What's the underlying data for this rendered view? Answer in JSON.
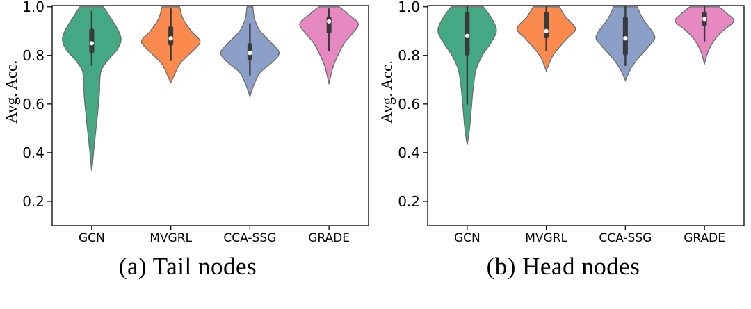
{
  "figure": {
    "captions": [
      "(a) Tail nodes",
      "(b) Head nodes"
    ]
  },
  "style": {
    "violin_edge_color": "#6e6e6e",
    "box_color": "#3a3a3a",
    "median_dot_color": "#ffffff",
    "axis_color": "#000000"
  },
  "chart_data": [
    {
      "type": "violin",
      "title": "(a) Tail nodes",
      "ylabel": "Avg. Acc.",
      "categories": [
        "GCN",
        "MVGRL",
        "CCA-SSG",
        "GRADE"
      ],
      "yticks": [
        0.2,
        0.4,
        0.6,
        0.8,
        1.0
      ],
      "ylim": [
        0.1,
        1.005
      ],
      "grid": false,
      "legend": "none",
      "violins": [
        {
          "name": "GCN",
          "color": "#45a884",
          "min": 0.33,
          "max": 1.0,
          "median": 0.85,
          "q1": 0.81,
          "q3": 0.91,
          "whisker_lo": 0.76,
          "whisker_hi": 0.98,
          "profile": [
            [
              1.0,
              0.4
            ],
            [
              0.96,
              0.62
            ],
            [
              0.9,
              0.92
            ],
            [
              0.86,
              1.0
            ],
            [
              0.82,
              0.85
            ],
            [
              0.78,
              0.55
            ],
            [
              0.74,
              0.33
            ],
            [
              0.7,
              0.28
            ],
            [
              0.64,
              0.26
            ],
            [
              0.56,
              0.2
            ],
            [
              0.48,
              0.13
            ],
            [
              0.4,
              0.06
            ],
            [
              0.335,
              0.01
            ]
          ]
        },
        {
          "name": "MVGRL",
          "color": "#fb8a4e",
          "min": 0.69,
          "max": 1.0,
          "median": 0.87,
          "q1": 0.84,
          "q3": 0.92,
          "whisker_lo": 0.78,
          "whisker_hi": 0.99,
          "profile": [
            [
              1.0,
              0.3
            ],
            [
              0.95,
              0.42
            ],
            [
              0.9,
              0.7
            ],
            [
              0.86,
              1.0
            ],
            [
              0.83,
              0.85
            ],
            [
              0.79,
              0.5
            ],
            [
              0.76,
              0.28
            ],
            [
              0.72,
              0.12
            ],
            [
              0.69,
              0.01
            ]
          ]
        },
        {
          "name": "CCA-SSG",
          "color": "#8c9fc9",
          "min": 0.63,
          "max": 1.0,
          "median": 0.81,
          "q1": 0.78,
          "q3": 0.85,
          "whisker_lo": 0.72,
          "whisker_hi": 0.93,
          "profile": [
            [
              1.0,
              0.1
            ],
            [
              0.95,
              0.16
            ],
            [
              0.9,
              0.35
            ],
            [
              0.85,
              0.75
            ],
            [
              0.81,
              1.0
            ],
            [
              0.77,
              0.75
            ],
            [
              0.73,
              0.35
            ],
            [
              0.68,
              0.14
            ],
            [
              0.635,
              0.01
            ]
          ]
        },
        {
          "name": "GRADE",
          "color": "#e689c0",
          "min": 0.69,
          "max": 1.0,
          "median": 0.94,
          "q1": 0.89,
          "q3": 0.96,
          "whisker_lo": 0.82,
          "whisker_hi": 0.99,
          "profile": [
            [
              1.0,
              0.35
            ],
            [
              0.97,
              0.65
            ],
            [
              0.93,
              1.0
            ],
            [
              0.89,
              0.8
            ],
            [
              0.85,
              0.52
            ],
            [
              0.8,
              0.3
            ],
            [
              0.75,
              0.13
            ],
            [
              0.69,
              0.01
            ]
          ]
        }
      ]
    },
    {
      "type": "violin",
      "title": "(b) Head nodes",
      "ylabel": "Avg. Acc.",
      "categories": [
        "GCN",
        "MVGRL",
        "CCA-SSG",
        "GRADE"
      ],
      "yticks": [
        0.2,
        0.4,
        0.6,
        0.8,
        1.0
      ],
      "ylim": [
        0.1,
        1.005
      ],
      "grid": false,
      "legend": "none",
      "violins": [
        {
          "name": "GCN",
          "color": "#45a884",
          "min": 0.44,
          "max": 1.0,
          "median": 0.88,
          "q1": 0.8,
          "q3": 0.98,
          "whisker_lo": 0.6,
          "whisker_hi": 1.0,
          "profile": [
            [
              1.0,
              0.55
            ],
            [
              0.95,
              0.85
            ],
            [
              0.9,
              1.0
            ],
            [
              0.85,
              0.8
            ],
            [
              0.8,
              0.52
            ],
            [
              0.74,
              0.3
            ],
            [
              0.66,
              0.2
            ],
            [
              0.58,
              0.14
            ],
            [
              0.5,
              0.08
            ],
            [
              0.44,
              0.01
            ]
          ]
        },
        {
          "name": "MVGRL",
          "color": "#fb8a4e",
          "min": 0.74,
          "max": 1.0,
          "median": 0.9,
          "q1": 0.87,
          "q3": 0.98,
          "whisker_lo": 0.82,
          "whisker_hi": 1.0,
          "profile": [
            [
              1.0,
              0.45
            ],
            [
              0.96,
              0.65
            ],
            [
              0.91,
              1.0
            ],
            [
              0.87,
              0.72
            ],
            [
              0.83,
              0.42
            ],
            [
              0.79,
              0.18
            ],
            [
              0.74,
              0.01
            ]
          ]
        },
        {
          "name": "CCA-SSG",
          "color": "#8c9fc9",
          "min": 0.7,
          "max": 1.0,
          "median": 0.87,
          "q1": 0.8,
          "q3": 0.96,
          "whisker_lo": 0.76,
          "whisker_hi": 1.0,
          "profile": [
            [
              1.0,
              0.4
            ],
            [
              0.95,
              0.6
            ],
            [
              0.88,
              1.0
            ],
            [
              0.84,
              0.82
            ],
            [
              0.79,
              0.45
            ],
            [
              0.745,
              0.18
            ],
            [
              0.7,
              0.01
            ]
          ]
        },
        {
          "name": "GRADE",
          "color": "#e689c0",
          "min": 0.77,
          "max": 1.0,
          "median": 0.95,
          "q1": 0.92,
          "q3": 0.98,
          "whisker_lo": 0.86,
          "whisker_hi": 1.0,
          "profile": [
            [
              1.0,
              0.5
            ],
            [
              0.97,
              0.8
            ],
            [
              0.94,
              1.0
            ],
            [
              0.9,
              0.62
            ],
            [
              0.86,
              0.32
            ],
            [
              0.815,
              0.12
            ],
            [
              0.77,
              0.01
            ]
          ]
        }
      ]
    }
  ]
}
